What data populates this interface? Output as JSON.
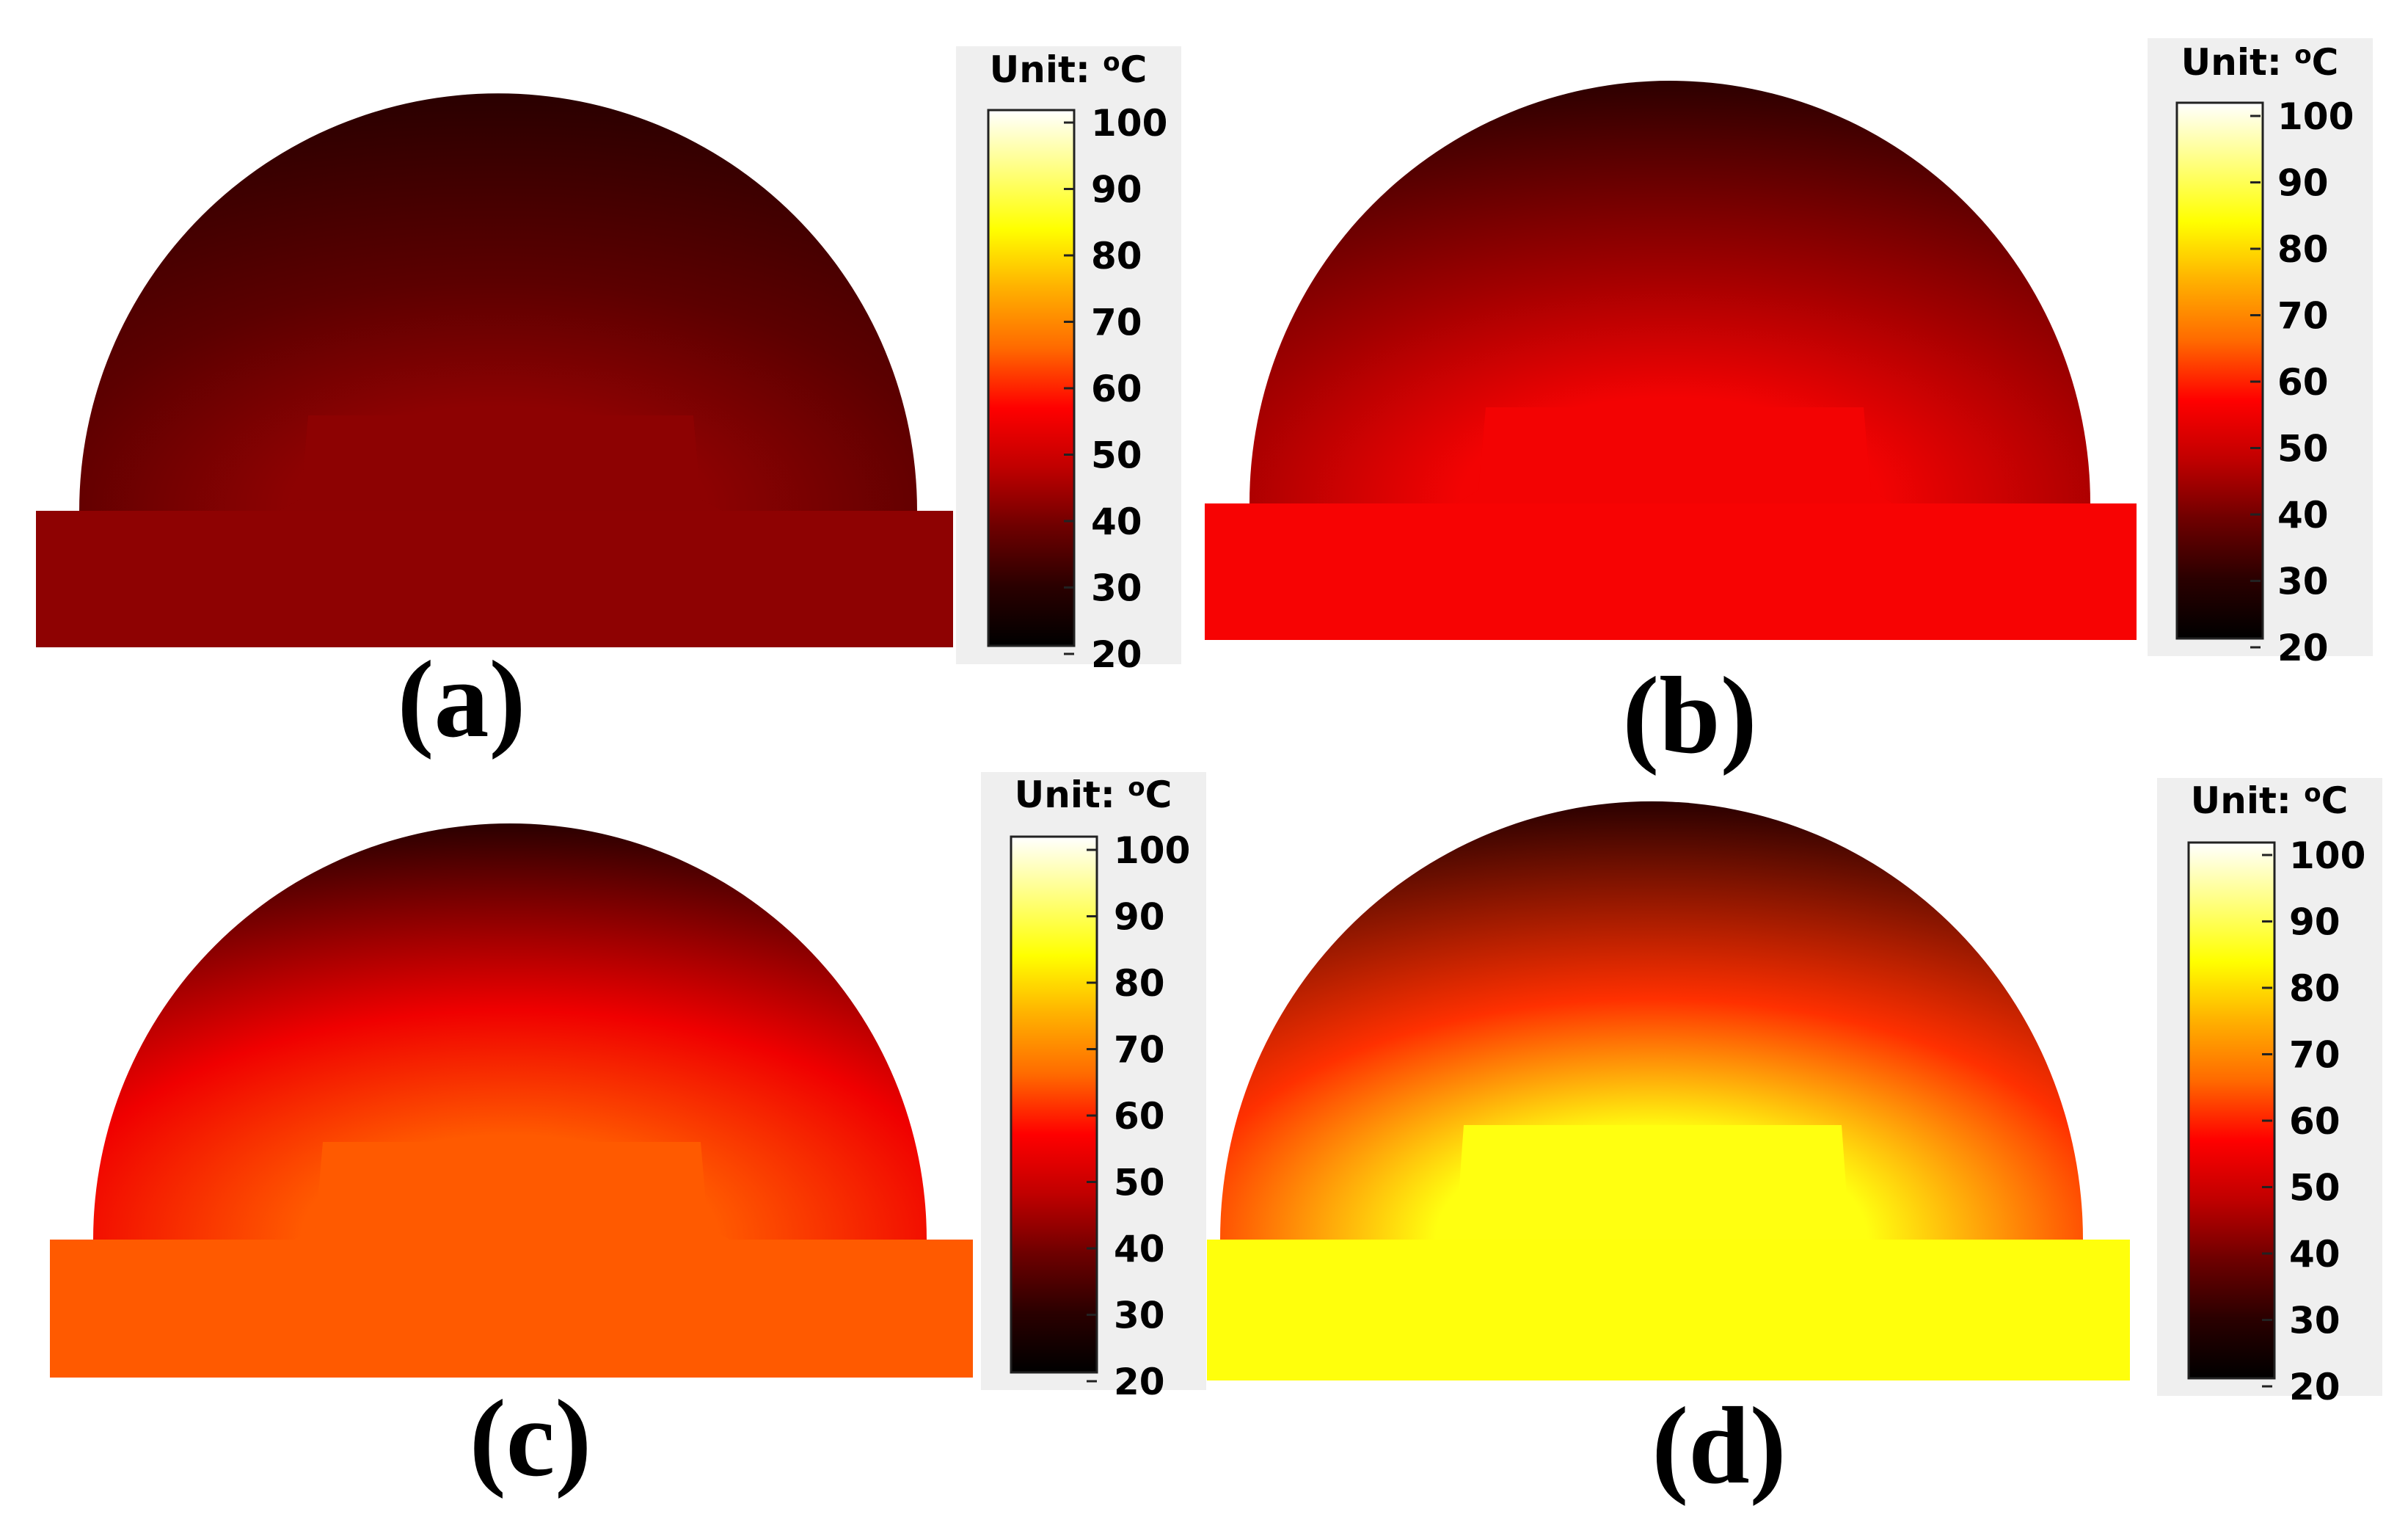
{
  "colormap": {
    "name": "hot",
    "stops": [
      "#000000",
      "#2a0000",
      "#6e0000",
      "#c00000",
      "#ff0000",
      "#ff6a00",
      "#ffb000",
      "#ffff00",
      "#ffff80",
      "#ffffff"
    ]
  },
  "panels": [
    {
      "id": "a",
      "label": "(a)",
      "colorbar": {
        "unit_prefix": "Unit: ",
        "unit_superscript": "o",
        "unit_suffix": "C",
        "ticks": [
          "100",
          "90",
          "80",
          "70",
          "60",
          "50",
          "40",
          "30",
          "20"
        ]
      },
      "colors": {
        "base": "#8e0202",
        "chip": "#8d0202",
        "dome_top": "#2a0000",
        "dome_mid": "#5c0000"
      }
    },
    {
      "id": "b",
      "label": "(b)",
      "colorbar": {
        "unit_prefix": "Unit: ",
        "unit_superscript": "o",
        "unit_suffix": "C",
        "ticks": [
          "100",
          "90",
          "80",
          "70",
          "60",
          "50",
          "40",
          "30",
          "20"
        ]
      },
      "colors": {
        "base": "#f70303",
        "chip": "#f30303",
        "dome_top": "#2c0000",
        "dome_mid": "#a00000"
      }
    },
    {
      "id": "c",
      "label": "(c)",
      "colorbar": {
        "unit_prefix": "Unit: ",
        "unit_superscript": "o",
        "unit_suffix": "C",
        "ticks": [
          "100",
          "90",
          "80",
          "70",
          "60",
          "50",
          "40",
          "30",
          "20"
        ]
      },
      "colors": {
        "base": "#ff5a00",
        "chip": "#ff5a00",
        "dome_top": "#2a0000",
        "dome_mid": "#f00000"
      }
    },
    {
      "id": "d",
      "label": "(d)",
      "colorbar": {
        "unit_prefix": "Unit: ",
        "unit_superscript": "o",
        "unit_suffix": "C",
        "ticks": [
          "100",
          "90",
          "80",
          "70",
          "60",
          "50",
          "40",
          "30",
          "20"
        ]
      },
      "colors": {
        "base": "#ffff0c",
        "chip": "#ffff10",
        "dome_top": "#2a0000",
        "dome_mid": "#ff3000"
      }
    }
  ]
}
